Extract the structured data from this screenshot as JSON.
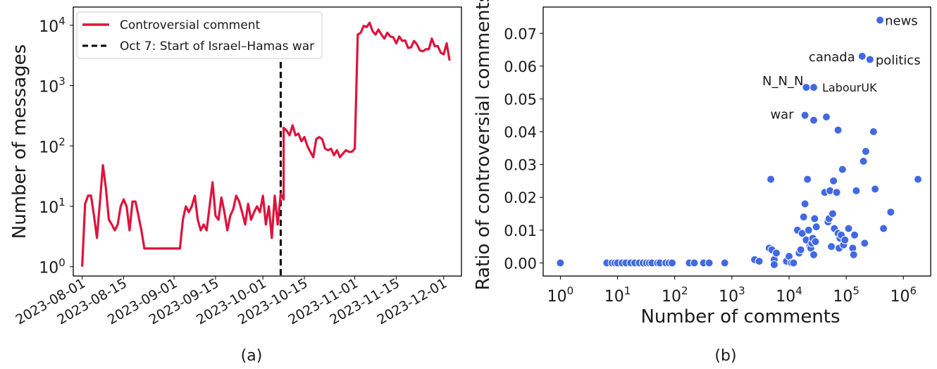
{
  "panels": {
    "a_caption": "(a)",
    "b_caption": "(b)"
  },
  "chart_data": [
    {
      "type": "line",
      "panel": "(a)",
      "xlabel": "",
      "ylabel": "Number of messages",
      "yscale": "log",
      "ylim": [
        0.7,
        20000
      ],
      "xlim": [
        "2023-07-29",
        "2023-12-07"
      ],
      "x_ticks": [
        "2023-08-01",
        "2023-08-15",
        "2023-09-01",
        "2023-09-15",
        "2023-10-01",
        "2023-10-15",
        "2023-11-01",
        "2023-11-15",
        "2023-12-01"
      ],
      "y_ticks": [
        1,
        10,
        100,
        1000,
        10000
      ],
      "y_tick_labels": [
        "10^0",
        "10^1",
        "10^2",
        "10^3",
        "10^4"
      ],
      "grid": false,
      "legend_position": "top-left",
      "color_line": "#dc143c",
      "series": [
        {
          "name": "Controversial comment",
          "points": [
            [
              "2023-08-01",
              1
            ],
            [
              "2023-08-02",
              11
            ],
            [
              "2023-08-03",
              15
            ],
            [
              "2023-08-04",
              15
            ],
            [
              "2023-08-05",
              7
            ],
            [
              "2023-08-06",
              3
            ],
            [
              "2023-08-07",
              12
            ],
            [
              "2023-08-08",
              48
            ],
            [
              "2023-08-09",
              20
            ],
            [
              "2023-08-10",
              6
            ],
            [
              "2023-08-11",
              5
            ],
            [
              "2023-08-12",
              4
            ],
            [
              "2023-08-13",
              5
            ],
            [
              "2023-08-14",
              10
            ],
            [
              "2023-08-15",
              13
            ],
            [
              "2023-08-16",
              10
            ],
            [
              "2023-08-17",
              4
            ],
            [
              "2023-08-18",
              12
            ],
            [
              "2023-08-19",
              12
            ],
            [
              "2023-08-20",
              7
            ],
            [
              "2023-08-21",
              4
            ],
            [
              "2023-08-22",
              2
            ],
            [
              "2023-09-03",
              2
            ],
            [
              "2023-09-04",
              6
            ],
            [
              "2023-09-05",
              10
            ],
            [
              "2023-09-06",
              8
            ],
            [
              "2023-09-07",
              10
            ],
            [
              "2023-09-08",
              15
            ],
            [
              "2023-09-09",
              6
            ],
            [
              "2023-09-10",
              4
            ],
            [
              "2023-09-11",
              5
            ],
            [
              "2023-09-12",
              4
            ],
            [
              "2023-09-13",
              10
            ],
            [
              "2023-09-14",
              25
            ],
            [
              "2023-09-15",
              7
            ],
            [
              "2023-09-16",
              6
            ],
            [
              "2023-09-17",
              14
            ],
            [
              "2023-09-18",
              8
            ],
            [
              "2023-09-19",
              4
            ],
            [
              "2023-09-20",
              7
            ],
            [
              "2023-09-21",
              9
            ],
            [
              "2023-09-22",
              15
            ],
            [
              "2023-09-23",
              12
            ],
            [
              "2023-09-24",
              8
            ],
            [
              "2023-09-25",
              5
            ],
            [
              "2023-09-26",
              11
            ],
            [
              "2023-09-27",
              6
            ],
            [
              "2023-09-28",
              8
            ],
            [
              "2023-09-29",
              10
            ],
            [
              "2023-09-30",
              8
            ],
            [
              "2023-10-01",
              15
            ],
            [
              "2023-10-02",
              5
            ],
            [
              "2023-10-03",
              10
            ],
            [
              "2023-10-04",
              3
            ],
            [
              "2023-10-05",
              15
            ],
            [
              "2023-10-06",
              5
            ],
            [
              "2023-10-07",
              16
            ],
            [
              "2023-10-08",
              13
            ],
            [
              "2023-10-08",
              200
            ],
            [
              "2023-10-09",
              180
            ],
            [
              "2023-10-10",
              150
            ],
            [
              "2023-10-11",
              220
            ],
            [
              "2023-10-12",
              150
            ],
            [
              "2023-10-13",
              160
            ],
            [
              "2023-10-14",
              120
            ],
            [
              "2023-10-15",
              140
            ],
            [
              "2023-10-16",
              100
            ],
            [
              "2023-10-17",
              80
            ],
            [
              "2023-10-18",
              65
            ],
            [
              "2023-10-19",
              130
            ],
            [
              "2023-10-20",
              140
            ],
            [
              "2023-10-21",
              130
            ],
            [
              "2023-10-22",
              90
            ],
            [
              "2023-10-23",
              85
            ],
            [
              "2023-10-24",
              90
            ],
            [
              "2023-10-25",
              70
            ],
            [
              "2023-10-26",
              85
            ],
            [
              "2023-10-27",
              65
            ],
            [
              "2023-10-28",
              75
            ],
            [
              "2023-10-29",
              85
            ],
            [
              "2023-10-30",
              80
            ],
            [
              "2023-10-31",
              80
            ],
            [
              "2023-11-01",
              90
            ],
            [
              "2023-11-02",
              7000
            ],
            [
              "2023-11-03",
              7500
            ],
            [
              "2023-11-04",
              9800
            ],
            [
              "2023-11-05",
              9300
            ],
            [
              "2023-11-06",
              11000
            ],
            [
              "2023-11-07",
              8000
            ],
            [
              "2023-11-08",
              7000
            ],
            [
              "2023-11-09",
              8500
            ],
            [
              "2023-11-10",
              7000
            ],
            [
              "2023-11-11",
              6000
            ],
            [
              "2023-11-12",
              7500
            ],
            [
              "2023-11-13",
              6500
            ],
            [
              "2023-11-14",
              6300
            ],
            [
              "2023-11-15",
              5000
            ],
            [
              "2023-11-16",
              6500
            ],
            [
              "2023-11-17",
              5500
            ],
            [
              "2023-11-18",
              5600
            ],
            [
              "2023-11-19",
              4200
            ],
            [
              "2023-11-20",
              4300
            ],
            [
              "2023-11-21",
              5500
            ],
            [
              "2023-11-22",
              4800
            ],
            [
              "2023-11-23",
              3800
            ],
            [
              "2023-11-24",
              3700
            ],
            [
              "2023-11-25",
              4000
            ],
            [
              "2023-11-26",
              4000
            ],
            [
              "2023-11-27",
              6000
            ],
            [
              "2023-11-28",
              4500
            ],
            [
              "2023-11-29",
              4500
            ],
            [
              "2023-11-30",
              3500
            ],
            [
              "2023-12-01",
              3300
            ],
            [
              "2023-12-02",
              5000
            ],
            [
              "2023-12-03",
              2600
            ]
          ]
        }
      ],
      "annotations": [
        {
          "type": "vline",
          "x": "2023-10-07",
          "label": "Oct 7: Start of Israel–Hamas war",
          "style": "dashed",
          "color": "#000000"
        }
      ]
    },
    {
      "type": "scatter",
      "panel": "(b)",
      "xlabel": "Number of comments",
      "ylabel": "Ratio of controversial comments",
      "xscale": "log",
      "xlim": [
        0.5,
        3000000
      ],
      "ylim": [
        -0.004,
        0.078
      ],
      "x_ticks": [
        1,
        10,
        100,
        1000,
        10000,
        100000,
        1000000
      ],
      "x_tick_labels": [
        "10^0",
        "10^1",
        "10^2",
        "10^3",
        "10^4",
        "10^5",
        "10^6"
      ],
      "y_ticks": [
        0.0,
        0.01,
        0.02,
        0.03,
        0.04,
        0.05,
        0.06,
        0.07
      ],
      "y_tick_labels": [
        "0.00",
        "0.01",
        "0.02",
        "0.03",
        "0.04",
        "0.05",
        "0.06",
        "0.07"
      ],
      "grid": false,
      "color_points": "#4169e1",
      "labeled_points": [
        {
          "label": "news",
          "x": 390000,
          "y": 0.074
        },
        {
          "label": "politics",
          "x": 260000,
          "y": 0.062
        },
        {
          "label": "canada",
          "x": 190000,
          "y": 0.063
        },
        {
          "label": "LabourUK",
          "x": 27000,
          "y": 0.0535
        },
        {
          "label": "N_N_N",
          "x": 20000,
          "y": 0.0535
        },
        {
          "label": "war",
          "x": 19000,
          "y": 0.045
        }
      ],
      "points": [
        [
          1,
          0
        ],
        [
          6.5,
          0
        ],
        [
          8,
          0
        ],
        [
          9,
          0
        ],
        [
          10,
          0
        ],
        [
          12,
          0
        ],
        [
          14,
          0
        ],
        [
          17,
          0
        ],
        [
          20,
          0
        ],
        [
          24,
          0
        ],
        [
          28,
          0
        ],
        [
          32,
          0
        ],
        [
          36,
          0
        ],
        [
          40,
          0
        ],
        [
          50,
          0
        ],
        [
          55,
          0
        ],
        [
          70,
          0
        ],
        [
          80,
          0
        ],
        [
          90,
          0
        ],
        [
          180,
          0
        ],
        [
          220,
          0
        ],
        [
          320,
          0
        ],
        [
          400,
          0
        ],
        [
          750,
          0
        ],
        [
          2500,
          0.001
        ],
        [
          3000,
          0.0005
        ],
        [
          4500,
          0.0045
        ],
        [
          5000,
          0.004
        ],
        [
          5500,
          0.001
        ],
        [
          6000,
          0.003
        ],
        [
          5500,
          -0.0005
        ],
        [
          4800,
          0.0255
        ],
        [
          9000,
          0.0005
        ],
        [
          10000,
          0.002
        ],
        [
          11000,
          0.0
        ],
        [
          12000,
          0.0
        ],
        [
          14000,
          0.01
        ],
        [
          15000,
          0.003
        ],
        [
          16000,
          0.004
        ],
        [
          17000,
          0.009
        ],
        [
          18000,
          0.014
        ],
        [
          19000,
          0.018
        ],
        [
          20000,
          0.007
        ],
        [
          21000,
          0.0255
        ],
        [
          22000,
          0.01
        ],
        [
          23000,
          0.005
        ],
        [
          24000,
          0.0045
        ],
        [
          25000,
          0.006
        ],
        [
          26000,
          0.0075
        ],
        [
          27000,
          0.0025
        ],
        [
          28000,
          0.0135
        ],
        [
          29000,
          0.0065
        ],
        [
          30000,
          0.011
        ],
        [
          27000,
          0.0435
        ],
        [
          45000,
          0.0445
        ],
        [
          42000,
          0.0215
        ],
        [
          48000,
          0.0125
        ],
        [
          50000,
          0.0135
        ],
        [
          52000,
          0.022
        ],
        [
          55000,
          0.005
        ],
        [
          58000,
          0.015
        ],
        [
          60000,
          0.025
        ],
        [
          62000,
          0.0105
        ],
        [
          68000,
          0.0215
        ],
        [
          72000,
          0.009
        ],
        [
          75000,
          0.0045
        ],
        [
          78000,
          0.0075
        ],
        [
          82000,
          0.0085
        ],
        [
          86000,
          0.0285
        ],
        [
          90000,
          0.0055
        ],
        [
          95000,
          0.007
        ],
        [
          72000,
          0.0405
        ],
        [
          110000,
          0.0105
        ],
        [
          130000,
          0.0045
        ],
        [
          135000,
          0.0025
        ],
        [
          140000,
          0.0085
        ],
        [
          150000,
          0.022
        ],
        [
          200000,
          0.031
        ],
        [
          220000,
          0.034
        ],
        [
          210000,
          0.006
        ],
        [
          300000,
          0.04
        ],
        [
          320000,
          0.0225
        ],
        [
          450000,
          0.0105
        ],
        [
          600000,
          0.0155
        ],
        [
          1800000,
          0.0255
        ]
      ]
    }
  ]
}
